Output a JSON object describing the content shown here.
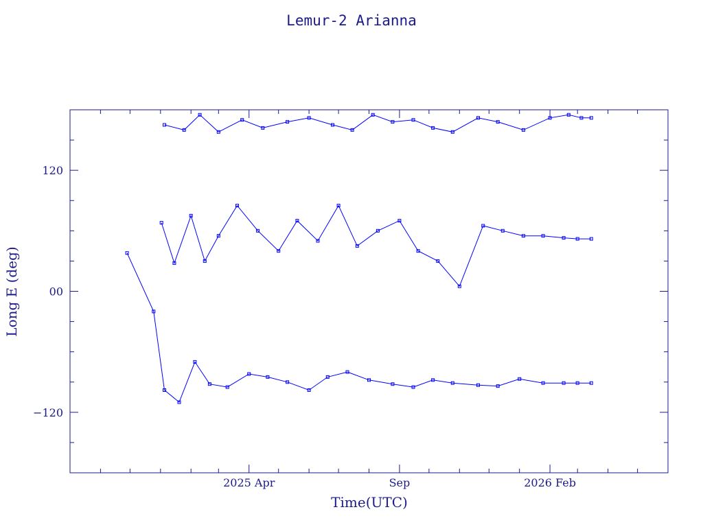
{
  "chart_data": {
    "type": "line",
    "title": "Lemur-2 Arianna",
    "xlabel": "Time(UTC)",
    "ylabel": "Long E (deg)",
    "x_tick_labels": [
      "2025 Apr",
      "Sep",
      "2026 Feb"
    ],
    "y_tick_labels": [
      "120",
      "00",
      "−120"
    ],
    "y_ticks": [
      120,
      0,
      -120
    ],
    "ylim": [
      -180,
      180
    ],
    "xlim": [
      "2024-10-01",
      "2026-06-01"
    ],
    "grid": false,
    "marker": "square",
    "line_color": "#0000ff",
    "axis_color": "#1a1a8c",
    "series": [
      {
        "x": [
          "2024-11-28",
          "2024-12-25",
          "2025-01-05",
          "2025-01-20",
          "2025-02-05",
          "2025-02-20",
          "2025-03-10",
          "2025-04-01",
          "2025-04-20",
          "2025-05-10",
          "2025-06-01",
          "2025-06-20",
          "2025-07-10",
          "2025-08-01",
          "2025-08-25",
          "2025-09-15",
          "2025-10-05",
          "2025-10-25",
          "2025-11-20",
          "2025-12-10",
          "2026-01-01",
          "2026-01-25",
          "2026-02-15",
          "2026-03-01",
          "2026-03-15"
        ],
        "values": [
          38,
          -20,
          -98,
          -110,
          -70,
          -92,
          -95,
          -82,
          -85,
          -90,
          -98,
          -85,
          -80,
          -88,
          -92,
          -95,
          -88,
          -91,
          -93,
          -94,
          -87,
          -91,
          -91,
          -91,
          -91
        ]
      },
      {
        "x": [
          "2025-01-02",
          "2025-01-15",
          "2025-02-01",
          "2025-02-15",
          "2025-03-01",
          "2025-03-20",
          "2025-04-10",
          "2025-05-01",
          "2025-05-20",
          "2025-06-10",
          "2025-07-01",
          "2025-07-20",
          "2025-08-10",
          "2025-09-01",
          "2025-09-20",
          "2025-10-10",
          "2025-11-01",
          "2025-11-25",
          "2025-12-15",
          "2026-01-05",
          "2026-01-25",
          "2026-02-15",
          "2026-03-01",
          "2026-03-15"
        ],
        "values": [
          68,
          28,
          75,
          30,
          55,
          85,
          60,
          40,
          70,
          50,
          85,
          45,
          60,
          70,
          40,
          30,
          5,
          65,
          60,
          55,
          55,
          53,
          52,
          52
        ]
      },
      {
        "x": [
          "2025-01-05",
          "2025-01-25",
          "2025-02-10",
          "2025-03-01",
          "2025-03-25",
          "2025-04-15",
          "2025-05-10",
          "2025-06-01",
          "2025-06-25",
          "2025-07-15",
          "2025-08-05",
          "2025-08-25",
          "2025-09-15",
          "2025-10-05",
          "2025-10-25",
          "2025-11-20",
          "2025-12-10",
          "2026-01-05",
          "2026-02-01",
          "2026-02-20",
          "2026-03-05",
          "2026-03-15"
        ],
        "values": [
          165,
          160,
          175,
          158,
          170,
          162,
          168,
          172,
          165,
          160,
          175,
          168,
          170,
          162,
          158,
          172,
          168,
          160,
          172,
          175,
          172,
          172
        ]
      }
    ]
  }
}
